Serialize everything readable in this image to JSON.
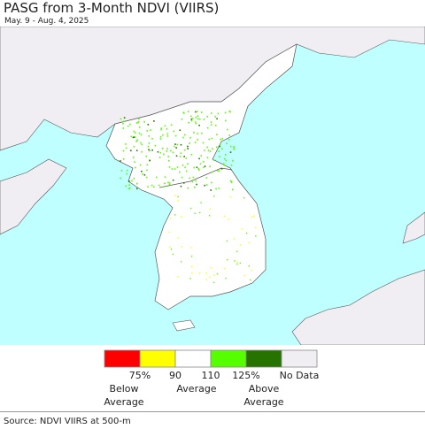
{
  "header": {
    "title": "PASG from 3-Month NDVI (VIIRS)",
    "subtitle": "May. 9 - Aug. 4, 2025"
  },
  "legend": {
    "colors": [
      "#ff0000",
      "#ffff00",
      "#ffffff",
      "#55ff00",
      "#267300",
      "#f0eef2"
    ],
    "tick_labels": [
      "75%",
      "90",
      "110",
      "125%"
    ],
    "no_data_label": "No Data",
    "category_labels": [
      "Below Average",
      "Average",
      "Above Average"
    ]
  },
  "source": "Source: NDVI VIIRS at 500-m"
}
